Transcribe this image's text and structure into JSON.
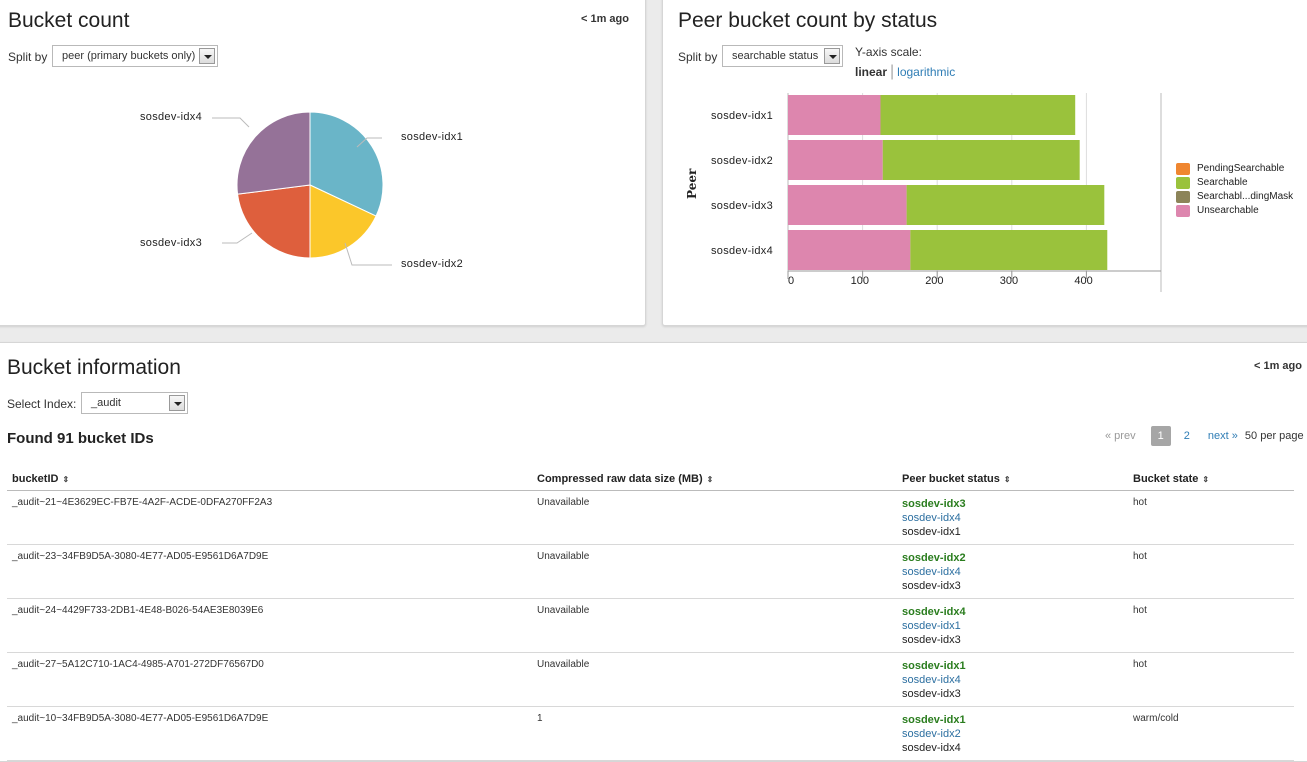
{
  "bucket_count_panel": {
    "title": "Bucket count",
    "ago": "< 1m ago",
    "split_label": "Split by",
    "split_value": "peer (primary buckets only)"
  },
  "pie": {
    "slices": [
      {
        "label": "sosdev-idx1",
        "value": 32,
        "color": "#6ab5c8"
      },
      {
        "label": "sosdev-idx2",
        "value": 18,
        "color": "#fbc72a"
      },
      {
        "label": "sosdev-idx3",
        "value": 23,
        "color": "#de5f3d"
      },
      {
        "label": "sosdev-idx4",
        "value": 27,
        "color": "#957298"
      }
    ]
  },
  "peer_status_panel": {
    "title": "Peer bucket count by status",
    "split_label": "Split by",
    "split_value": "searchable status",
    "y_scale_label": "Y-axis scale:",
    "scale_linear": "linear",
    "scale_sep": "|",
    "scale_log": "logarithmic"
  },
  "chart_data": {
    "type": "bar",
    "orientation": "horizontal",
    "stacked": true,
    "ylabel": "Peer",
    "categories": [
      "sosdev-idx1",
      "sosdev-idx2",
      "sosdev-idx3",
      "sosdev-idx4"
    ],
    "xlim": [
      0,
      500
    ],
    "xticks": [
      0,
      100,
      200,
      300,
      400
    ],
    "series": [
      {
        "name": "PendingSearchable",
        "color": "#ef8630",
        "values": [
          0,
          0,
          0,
          0
        ]
      },
      {
        "name": "Searchable",
        "color": "#9ac23c",
        "values": [
          261,
          264,
          265,
          264
        ]
      },
      {
        "name": "Searchabl...dingMask",
        "color": "#8c8459",
        "values": [
          0,
          0,
          0,
          0
        ]
      },
      {
        "name": "Unsearchable",
        "color": "#dd86ae",
        "values": [
          124,
          127,
          159,
          164
        ]
      }
    ],
    "legend_position": "right"
  },
  "bucket_info_panel": {
    "title": "Bucket information",
    "ago": "< 1m ago",
    "select_label": "Select Index:",
    "select_value": "_audit",
    "found": "Found 91 bucket IDs",
    "pager": {
      "prev": "« prev",
      "page1": "1",
      "page2": "2",
      "next": "next »",
      "per_page": "50 per page"
    }
  },
  "table": {
    "headers": [
      "bucketID",
      "Compressed raw data size (MB)",
      "Peer bucket status",
      "Bucket state"
    ],
    "sort_icon": "⇕",
    "rows": [
      {
        "id": "_audit~21~4E3629EC-FB7E-4A2F-ACDE-0DFA270FF2A3",
        "size": "Unavailable",
        "peers": [
          "sosdev-idx3",
          "sosdev-idx4",
          "sosdev-idx1"
        ],
        "state": "hot"
      },
      {
        "id": "_audit~23~34FB9D5A-3080-4E77-AD05-E9561D6A7D9E",
        "size": "Unavailable",
        "peers": [
          "sosdev-idx2",
          "sosdev-idx4",
          "sosdev-idx3"
        ],
        "state": "hot"
      },
      {
        "id": "_audit~24~4429F733-2DB1-4E48-B026-54AE3E8039E6",
        "size": "Unavailable",
        "peers": [
          "sosdev-idx4",
          "sosdev-idx1",
          "sosdev-idx3"
        ],
        "state": "hot"
      },
      {
        "id": "_audit~27~5A12C710-1AC4-4985-A701-272DF76567D0",
        "size": "Unavailable",
        "peers": [
          "sosdev-idx1",
          "sosdev-idx4",
          "sosdev-idx3"
        ],
        "state": "hot"
      },
      {
        "id": "_audit~10~34FB9D5A-3080-4E77-AD05-E9561D6A7D9E",
        "size": "1",
        "peers": [
          "sosdev-idx1",
          "sosdev-idx2",
          "sosdev-idx4"
        ],
        "state": "warm/cold"
      }
    ]
  }
}
